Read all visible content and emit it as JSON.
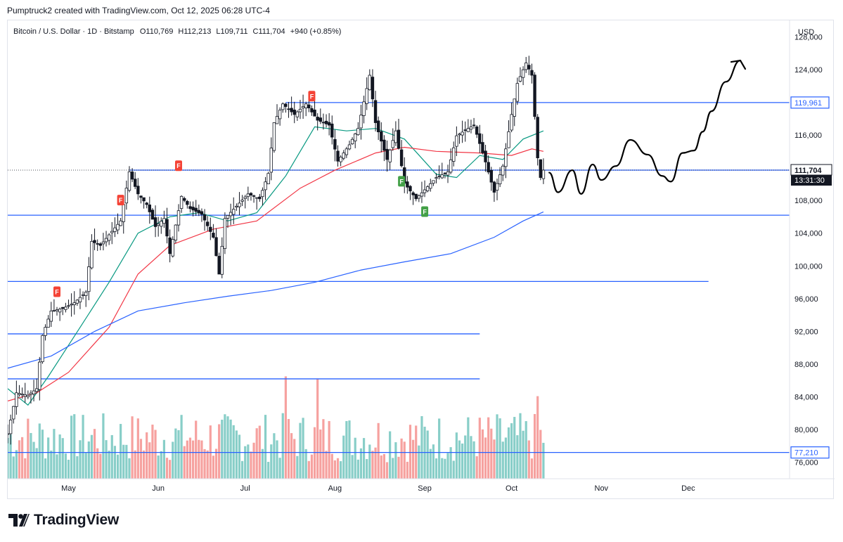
{
  "header_text": "Pumptruck2 created with TradingView.com, Oct 12, 2025 06:28 UTC-4",
  "brand": "TradingView",
  "icons": {
    "logo": "tradingview-logo-icon"
  },
  "colors": {
    "up": "#26a69a",
    "down": "#ef5350",
    "ema_fast": "#089981",
    "ema_mid": "#f23645",
    "ema_slow": "#2962ff",
    "hline": "#2962ff",
    "label_bg": "#2962ff",
    "price_label_bg": "#131722"
  },
  "chart_data": {
    "type": "candlestick",
    "symbol_line": "Bitcoin / U.S. Dollar · 1D · Bitstamp",
    "ohlc": {
      "o_label": "O",
      "o": "110,769",
      "h_label": "H",
      "h": "112,213",
      "l_label": "L",
      "l": "109,711",
      "c_label": "C",
      "c": "111,704",
      "change": "+940 (+0.85%)"
    },
    "currency": "USD",
    "ylim": [
      74000,
      130000
    ],
    "y_ticks": [
      {
        "value": 128000,
        "label": "128,000"
      },
      {
        "value": 124000,
        "label": "124,000"
      },
      {
        "value": 116000,
        "label": "116,000"
      },
      {
        "value": 108000,
        "label": "108,000"
      },
      {
        "value": 104000,
        "label": "104,000"
      },
      {
        "value": 100000,
        "label": "100,000"
      },
      {
        "value": 96000,
        "label": "96,000"
      },
      {
        "value": 92000,
        "label": "92,000"
      },
      {
        "value": 88000,
        "label": "88,000"
      },
      {
        "value": 84000,
        "label": "84,000"
      },
      {
        "value": 80000,
        "label": "80,000"
      },
      {
        "value": 76000,
        "label": "76,000"
      }
    ],
    "x_ticks": [
      {
        "date": "2025-05-01",
        "label": "May"
      },
      {
        "date": "2025-06-01",
        "label": "Jun"
      },
      {
        "date": "2025-07-01",
        "label": "Jul"
      },
      {
        "date": "2025-08-01",
        "label": "Aug"
      },
      {
        "date": "2025-09-01",
        "label": "Sep"
      },
      {
        "date": "2025-10-01",
        "label": "Oct"
      },
      {
        "date": "2025-11-01",
        "label": "Nov"
      },
      {
        "date": "2025-12-01",
        "label": "Dec"
      }
    ],
    "xlim": [
      "2025-04-10",
      "2026-01-05"
    ],
    "price_labels": [
      {
        "value": 119961,
        "label": "119,961",
        "style": "level"
      },
      {
        "value": 111704,
        "label": "111,704",
        "sub": "13:31:30",
        "style": "last"
      },
      {
        "value": 77210,
        "label": "77,210",
        "style": "level"
      }
    ],
    "horizontal_levels": [
      {
        "value": 119961,
        "from": "2025-07-15",
        "to": "2026-01-05"
      },
      {
        "value": 111704,
        "from": "2025-05-22",
        "to": "2026-01-05"
      },
      {
        "value": 106200,
        "from": "2025-04-10",
        "to": "2026-01-05"
      },
      {
        "value": 98100,
        "from": "2025-04-10",
        "to": "2025-12-08"
      },
      {
        "value": 91700,
        "from": "2025-04-10",
        "to": "2025-09-20"
      },
      {
        "value": 86200,
        "from": "2025-04-10",
        "to": "2025-09-20"
      },
      {
        "value": 77210,
        "from": "2025-04-10",
        "to": "2026-01-05"
      }
    ],
    "closes": [
      {
        "date": "2025-04-10",
        "close": 79500
      },
      {
        "date": "2025-04-13",
        "close": 84500
      },
      {
        "date": "2025-04-17",
        "close": 84200
      },
      {
        "date": "2025-04-20",
        "close": 85000
      },
      {
        "date": "2025-04-22",
        "close": 91500
      },
      {
        "date": "2025-04-25",
        "close": 94500
      },
      {
        "date": "2025-04-29",
        "close": 94800
      },
      {
        "date": "2025-05-03",
        "close": 95500
      },
      {
        "date": "2025-05-07",
        "close": 96800
      },
      {
        "date": "2025-05-09",
        "close": 103000
      },
      {
        "date": "2025-05-12",
        "close": 102500
      },
      {
        "date": "2025-05-15",
        "close": 103800
      },
      {
        "date": "2025-05-19",
        "close": 105500
      },
      {
        "date": "2025-05-22",
        "close": 111500
      },
      {
        "date": "2025-05-25",
        "close": 108800
      },
      {
        "date": "2025-05-28",
        "close": 107500
      },
      {
        "date": "2025-05-31",
        "close": 104800
      },
      {
        "date": "2025-06-03",
        "close": 105800
      },
      {
        "date": "2025-06-05",
        "close": 101500
      },
      {
        "date": "2025-06-09",
        "close": 108500
      },
      {
        "date": "2025-06-12",
        "close": 107000
      },
      {
        "date": "2025-06-16",
        "close": 106300
      },
      {
        "date": "2025-06-20",
        "close": 103500
      },
      {
        "date": "2025-06-22",
        "close": 99000
      },
      {
        "date": "2025-06-24",
        "close": 105800
      },
      {
        "date": "2025-06-28",
        "close": 107300
      },
      {
        "date": "2025-07-02",
        "close": 108800
      },
      {
        "date": "2025-07-06",
        "close": 108200
      },
      {
        "date": "2025-07-09",
        "close": 111300
      },
      {
        "date": "2025-07-11",
        "close": 117500
      },
      {
        "date": "2025-07-14",
        "close": 119800
      },
      {
        "date": "2025-07-18",
        "close": 118500
      },
      {
        "date": "2025-07-22",
        "close": 119800
      },
      {
        "date": "2025-07-26",
        "close": 117800
      },
      {
        "date": "2025-07-30",
        "close": 117200
      },
      {
        "date": "2025-08-02",
        "close": 112800
      },
      {
        "date": "2025-08-06",
        "close": 114800
      },
      {
        "date": "2025-08-09",
        "close": 116800
      },
      {
        "date": "2025-08-13",
        "close": 123300
      },
      {
        "date": "2025-08-15",
        "close": 117500
      },
      {
        "date": "2025-08-19",
        "close": 113000
      },
      {
        "date": "2025-08-22",
        "close": 116500
      },
      {
        "date": "2025-08-25",
        "close": 110100
      },
      {
        "date": "2025-08-29",
        "close": 108200
      },
      {
        "date": "2025-09-01",
        "close": 109300
      },
      {
        "date": "2025-09-05",
        "close": 110800
      },
      {
        "date": "2025-09-09",
        "close": 111500
      },
      {
        "date": "2025-09-12",
        "close": 115900
      },
      {
        "date": "2025-09-16",
        "close": 116800
      },
      {
        "date": "2025-09-18",
        "close": 117200
      },
      {
        "date": "2025-09-22",
        "close": 112700
      },
      {
        "date": "2025-09-25",
        "close": 109000
      },
      {
        "date": "2025-09-28",
        "close": 112200
      },
      {
        "date": "2025-10-01",
        "close": 118500
      },
      {
        "date": "2025-10-03",
        "close": 122300
      },
      {
        "date": "2025-10-06",
        "close": 124800
      },
      {
        "date": "2025-10-08",
        "close": 123300
      },
      {
        "date": "2025-10-10",
        "close": 113200
      },
      {
        "date": "2025-10-11",
        "close": 110800
      },
      {
        "date": "2025-10-12",
        "close": 111704
      }
    ],
    "ma_fast": [
      [
        "2025-04-10",
        85000
      ],
      [
        "2025-04-17",
        83000
      ],
      [
        "2025-04-24",
        86500
      ],
      [
        "2025-05-05",
        92500
      ],
      [
        "2025-05-15",
        98000
      ],
      [
        "2025-05-25",
        104000
      ],
      [
        "2025-06-05",
        106000
      ],
      [
        "2025-06-15",
        106500
      ],
      [
        "2025-06-25",
        105500
      ],
      [
        "2025-07-05",
        106500
      ],
      [
        "2025-07-15",
        111000
      ],
      [
        "2025-07-25",
        117000
      ],
      [
        "2025-08-05",
        116500
      ],
      [
        "2025-08-15",
        116800
      ],
      [
        "2025-08-25",
        115500
      ],
      [
        "2025-09-05",
        111200
      ],
      [
        "2025-09-12",
        110800
      ],
      [
        "2025-09-20",
        113500
      ],
      [
        "2025-09-28",
        113000
      ],
      [
        "2025-10-05",
        115500
      ],
      [
        "2025-10-12",
        116500
      ]
    ],
    "ma_mid": [
      [
        "2025-04-10",
        83500
      ],
      [
        "2025-04-20",
        84500
      ],
      [
        "2025-05-01",
        87000
      ],
      [
        "2025-05-15",
        92500
      ],
      [
        "2025-05-25",
        99000
      ],
      [
        "2025-06-05",
        102500
      ],
      [
        "2025-06-20",
        104500
      ],
      [
        "2025-07-05",
        105500
      ],
      [
        "2025-07-20",
        109500
      ],
      [
        "2025-08-01",
        111700
      ],
      [
        "2025-08-15",
        113800
      ],
      [
        "2025-08-25",
        114500
      ],
      [
        "2025-09-05",
        114000
      ],
      [
        "2025-09-20",
        113800
      ],
      [
        "2025-10-01",
        113500
      ],
      [
        "2025-10-08",
        114300
      ],
      [
        "2025-10-12",
        114000
      ]
    ],
    "ma_slow": [
      [
        "2025-04-10",
        87500
      ],
      [
        "2025-04-25",
        89000
      ],
      [
        "2025-05-10",
        92000
      ],
      [
        "2025-05-25",
        94500
      ],
      [
        "2025-06-10",
        95500
      ],
      [
        "2025-06-25",
        96300
      ],
      [
        "2025-07-10",
        97000
      ],
      [
        "2025-07-25",
        98000
      ],
      [
        "2025-08-10",
        99500
      ],
      [
        "2025-08-25",
        100500
      ],
      [
        "2025-09-10",
        101500
      ],
      [
        "2025-09-25",
        103500
      ],
      [
        "2025-10-05",
        105500
      ],
      [
        "2025-10-12",
        106600
      ]
    ],
    "projection": [
      [
        "2025-10-14",
        111400
      ],
      [
        "2025-10-17",
        109000
      ],
      [
        "2025-10-22",
        111700
      ],
      [
        "2025-10-25",
        108800
      ],
      [
        "2025-10-29",
        112400
      ],
      [
        "2025-11-01",
        110500
      ],
      [
        "2025-11-06",
        112200
      ],
      [
        "2025-11-11",
        115400
      ],
      [
        "2025-11-17",
        113600
      ],
      [
        "2025-11-22",
        111000
      ],
      [
        "2025-11-25",
        110300
      ],
      [
        "2025-11-29",
        113800
      ],
      [
        "2025-12-03",
        114100
      ],
      [
        "2025-12-06",
        116400
      ],
      [
        "2025-12-09",
        118900
      ],
      [
        "2025-12-14",
        122500
      ],
      [
        "2025-12-19",
        125100
      ]
    ],
    "markers": [
      {
        "date": "2025-04-27",
        "value": 96800,
        "label": "F",
        "kind": "down"
      },
      {
        "date": "2025-05-19",
        "value": 108000,
        "label": "F",
        "kind": "down"
      },
      {
        "date": "2025-06-08",
        "value": 112200,
        "label": "F",
        "kind": "down"
      },
      {
        "date": "2025-07-24",
        "value": 120700,
        "label": "F",
        "kind": "down"
      },
      {
        "date": "2025-08-24",
        "value": 110300,
        "label": "F",
        "kind": "up"
      },
      {
        "date": "2025-09-01",
        "value": 106600,
        "label": "F",
        "kind": "up"
      }
    ],
    "volume": {
      "max_bars": [
        {
          "date": "2025-07-15",
          "rel": 0.93,
          "kind": "down"
        },
        {
          "date": "2025-07-26",
          "rel": 0.91,
          "kind": "down"
        },
        {
          "date": "2025-10-10",
          "rel": 0.75,
          "kind": "down"
        }
      ]
    }
  }
}
